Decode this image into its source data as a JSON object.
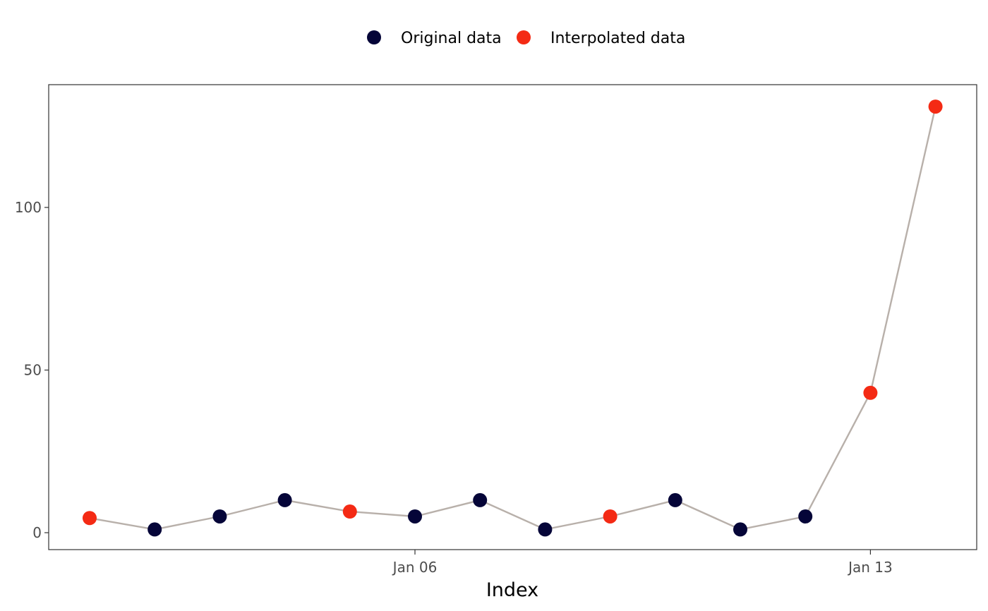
{
  "chart_data": {
    "type": "scatter",
    "title": "",
    "xlabel": "Index",
    "ylabel": "",
    "x_type": "date",
    "x": [
      "Jan 01",
      "Jan 02",
      "Jan 03",
      "Jan 04",
      "Jan 05",
      "Jan 06",
      "Jan 07",
      "Jan 08",
      "Jan 09",
      "Jan 10",
      "Jan 11",
      "Jan 12",
      "Jan 13",
      "Jan 14"
    ],
    "values": [
      4.5,
      1,
      5,
      10,
      6.5,
      5,
      10,
      1,
      5,
      10,
      1,
      5,
      43,
      131
    ],
    "point_series": [
      "Interpolated data",
      "Original data",
      "Original data",
      "Original data",
      "Interpolated data",
      "Original data",
      "Original data",
      "Original data",
      "Interpolated data",
      "Original data",
      "Original data",
      "Original data",
      "Interpolated data",
      "Interpolated data"
    ],
    "series": [
      {
        "name": "Original data",
        "color": "#050538"
      },
      {
        "name": "Interpolated data",
        "color": "#f42a14"
      }
    ],
    "line_color": "#b8b0aa",
    "x_ticks": [
      {
        "label": "Jan 06",
        "index": 5
      },
      {
        "label": "Jan 13",
        "index": 12
      }
    ],
    "y_ticks": [
      0,
      50,
      100
    ],
    "xlim_index": [
      0,
      13
    ],
    "ylim": [
      0,
      131
    ],
    "legend_position": "top",
    "grid": false
  }
}
